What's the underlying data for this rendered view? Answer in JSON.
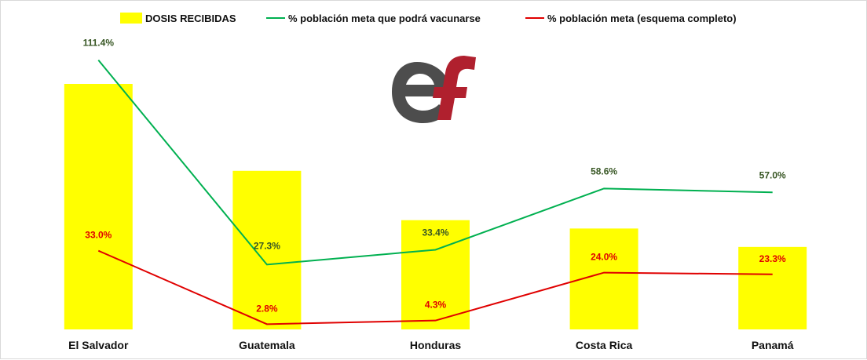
{
  "chart_data": {
    "type": "bar",
    "categories": [
      "El Salvador",
      "Guatemala",
      "Honduras",
      "Costa Rica",
      "Panamá"
    ],
    "bar_series": {
      "name": "DOSIS RECIBIDAS",
      "color": "#ffff00",
      "values": [
        100,
        64.6,
        44.5,
        41.1,
        33.6
      ]
    },
    "line_series": [
      {
        "name": "% población meta que podrá vacunarse",
        "color": "#00b050",
        "label_color": "#375623",
        "values": [
          111.4,
          27.3,
          33.4,
          58.6,
          57.0
        ],
        "labels": [
          "111.4%",
          "27.3%",
          "33.4%",
          "58.6%",
          "57.0%"
        ]
      },
      {
        "name": "% población meta (esquema completo)",
        "color": "#e00000",
        "label_color": "#e00000",
        "values": [
          33.0,
          2.8,
          4.3,
          24.0,
          23.3
        ],
        "labels": [
          "33.0%",
          "2.8%",
          "4.3%",
          "24.0%",
          "23.3%"
        ]
      }
    ],
    "legend_position": "top",
    "grid": false
  },
  "logo": {
    "name": "ef-logo",
    "text": "ef",
    "colors": {
      "e": "#4d4d4d",
      "f": "#b0202e"
    }
  }
}
